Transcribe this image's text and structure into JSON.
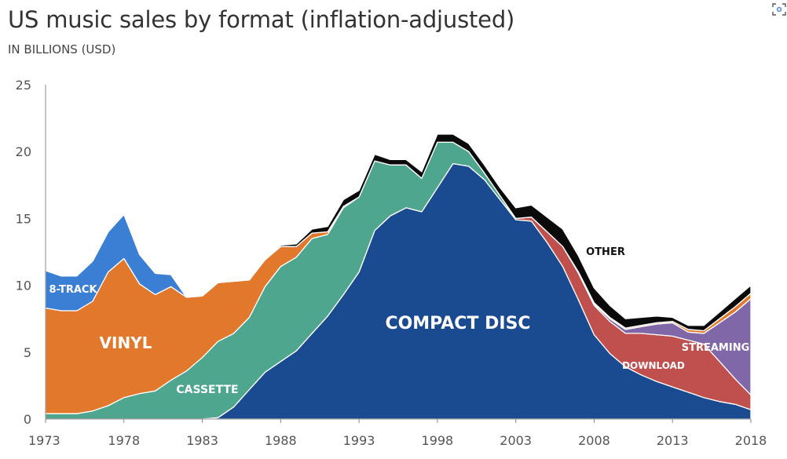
{
  "title": "US music sales by format (inflation-adjusted)",
  "subtitle": "IN BILLIONS (USD)",
  "chart_data": {
    "type": "area",
    "stacked": true,
    "x": [
      1973,
      1974,
      1975,
      1976,
      1977,
      1978,
      1979,
      1980,
      1981,
      1982,
      1983,
      1984,
      1985,
      1986,
      1987,
      1988,
      1989,
      1990,
      1991,
      1992,
      1993,
      1994,
      1995,
      1996,
      1997,
      1998,
      1999,
      2000,
      2001,
      2002,
      2003,
      2004,
      2005,
      2006,
      2007,
      2008,
      2009,
      2010,
      2011,
      2012,
      2013,
      2014,
      2015,
      2016,
      2017,
      2018
    ],
    "ylim": [
      0,
      25
    ],
    "y_ticks": [
      0,
      5,
      10,
      15,
      20,
      25
    ],
    "x_ticks": [
      1973,
      1978,
      1983,
      1988,
      1993,
      1998,
      2003,
      2008,
      2013,
      2018
    ],
    "grid": false,
    "series": [
      {
        "name": "COMPACT DISC",
        "color": "#1a4a8f",
        "values": [
          0,
          0,
          0,
          0,
          0,
          0,
          0,
          0,
          0,
          0,
          0,
          0.1,
          0.9,
          2.2,
          3.5,
          4.3,
          5.1,
          6.4,
          7.7,
          9.3,
          11.0,
          14.1,
          15.2,
          15.8,
          15.5,
          17.3,
          19.1,
          18.9,
          17.9,
          16.4,
          14.9,
          14.8,
          13.2,
          11.4,
          8.9,
          6.3,
          4.9,
          3.9,
          3.3,
          2.8,
          2.4,
          2.0,
          1.6,
          1.3,
          1.1,
          0.7
        ]
      },
      {
        "name": "DOWNLOAD",
        "color": "#c0504d",
        "values": [
          0,
          0,
          0,
          0,
          0,
          0,
          0,
          0,
          0,
          0,
          0,
          0,
          0,
          0,
          0,
          0,
          0,
          0,
          0,
          0,
          0,
          0,
          0,
          0,
          0,
          0,
          0,
          0,
          0,
          0,
          0.1,
          0.3,
          0.8,
          1.5,
          2.0,
          2.2,
          2.4,
          2.5,
          3.1,
          3.5,
          3.8,
          3.9,
          4.0,
          3.0,
          1.9,
          1.1
        ]
      },
      {
        "name": "STREAMING",
        "color": "#8068a8",
        "values": [
          0,
          0,
          0,
          0,
          0,
          0,
          0,
          0,
          0,
          0,
          0,
          0,
          0,
          0,
          0,
          0,
          0,
          0,
          0,
          0,
          0,
          0,
          0,
          0,
          0,
          0,
          0,
          0,
          0,
          0,
          0,
          0,
          0,
          0,
          0.1,
          0.1,
          0.2,
          0.3,
          0.5,
          0.8,
          1.0,
          0.6,
          0.8,
          2.9,
          5.0,
          7.2
        ]
      },
      {
        "name": "CASSETTE",
        "color": "#4ea68e",
        "values": [
          0.4,
          0.4,
          0.4,
          0.6,
          1.0,
          1.6,
          1.9,
          2.1,
          2.9,
          3.6,
          4.6,
          5.7,
          5.5,
          5.4,
          6.4,
          7.1,
          7.0,
          7.1,
          6.1,
          6.5,
          5.6,
          5.2,
          3.8,
          3.2,
          2.5,
          3.4,
          1.6,
          1.1,
          0.5,
          0.3,
          0,
          0,
          0,
          0,
          0,
          0,
          0,
          0,
          0,
          0,
          0,
          0,
          0,
          0,
          0,
          0
        ]
      },
      {
        "name": "VINYL",
        "color": "#e2782b",
        "values": [
          7.9,
          7.7,
          7.7,
          8.2,
          10.0,
          10.4,
          8.2,
          7.2,
          7.0,
          5.5,
          4.6,
          4.4,
          3.9,
          2.8,
          2.0,
          1.5,
          0.8,
          0.4,
          0.2,
          0.1,
          0,
          0,
          0,
          0,
          0,
          0,
          0,
          0,
          0,
          0,
          0,
          0,
          0,
          0,
          0,
          0.1,
          0.1,
          0.1,
          0.1,
          0.1,
          0.1,
          0.2,
          0.2,
          0.3,
          0.4,
          0.4
        ]
      },
      {
        "name": "8-TRACK",
        "color": "#3b7fd4",
        "values": [
          2.8,
          2.6,
          2.6,
          3.0,
          3.0,
          3.3,
          2.2,
          1.6,
          0.9,
          0,
          0,
          0,
          0,
          0,
          0,
          0,
          0,
          0,
          0,
          0,
          0,
          0,
          0,
          0,
          0,
          0,
          0,
          0,
          0,
          0,
          0,
          0,
          0,
          0,
          0,
          0,
          0,
          0,
          0,
          0,
          0,
          0,
          0,
          0,
          0,
          0
        ]
      },
      {
        "name": "OTHER",
        "color": "#0a0a0a",
        "values": [
          0,
          0,
          0,
          0,
          0,
          0,
          0,
          0,
          0,
          0,
          0,
          0,
          0,
          0,
          0,
          0.1,
          0.2,
          0.3,
          0.4,
          0.5,
          0.5,
          0.5,
          0.4,
          0.4,
          0.5,
          0.6,
          0.6,
          0.6,
          0.6,
          0.6,
          0.8,
          0.9,
          1.1,
          1.3,
          1.2,
          1.1,
          0.9,
          0.7,
          0.6,
          0.5,
          0.3,
          0.3,
          0.4,
          0.5,
          0.6,
          0.6
        ]
      }
    ],
    "annotations": [
      {
        "text": "8-TRACK",
        "series": "8-TRACK"
      },
      {
        "text": "VINYL",
        "series": "VINYL"
      },
      {
        "text": "CASSETTE",
        "series": "CASSETTE"
      },
      {
        "text": "COMPACT DISC",
        "series": "COMPACT DISC"
      },
      {
        "text": "OTHER",
        "series": "OTHER"
      },
      {
        "text": "DOWNLOAD",
        "series": "DOWNLOAD"
      },
      {
        "text": "STREAMING",
        "series": "STREAMING"
      }
    ]
  }
}
